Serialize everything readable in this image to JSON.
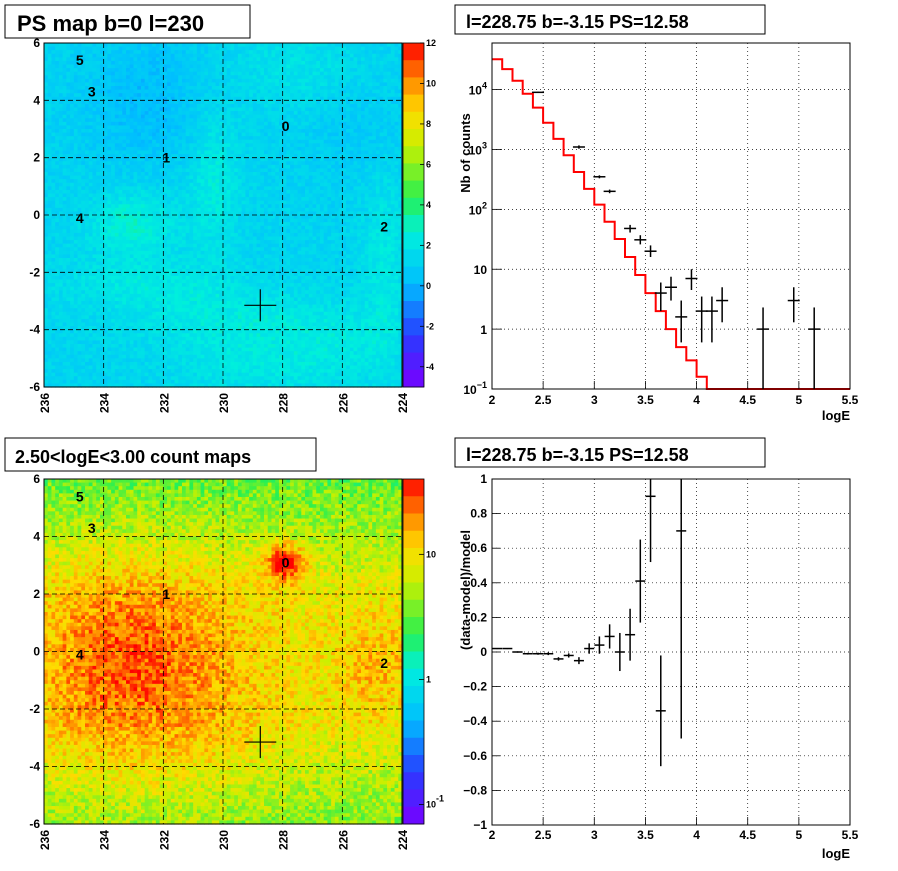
{
  "chart_data": [
    {
      "panel": "ps-map",
      "type": "heatmap",
      "title": "PS map b=0 l=230",
      "xlabel": "",
      "ylabel": "",
      "xlim": [
        236,
        224
      ],
      "ylim": [
        -6,
        6
      ],
      "xticks": [
        "236",
        "234",
        "232",
        "230",
        "228",
        "226",
        "224"
      ],
      "yticks": [
        "6",
        "4",
        "2",
        "0",
        "-2",
        "-4",
        "-6"
      ],
      "grid": true,
      "colorbar": {
        "scale": "linear",
        "range": [
          -5,
          12
        ],
        "ticks": [
          "12",
          "10",
          "8",
          "6",
          "4",
          "2",
          "0",
          "-2",
          "-4"
        ]
      },
      "sources": [
        {
          "label": "5",
          "l": 234.8,
          "b": 5.4
        },
        {
          "label": "3",
          "l": 234.4,
          "b": 4.3
        },
        {
          "label": "0",
          "l": 227.9,
          "b": 3.1
        },
        {
          "label": "1",
          "l": 231.9,
          "b": 2.0
        },
        {
          "label": "4",
          "l": 234.8,
          "b": -0.1
        },
        {
          "label": "2",
          "l": 224.6,
          "b": -0.4
        }
      ],
      "marker": {
        "l": 228.75,
        "b": -3.15
      }
    },
    {
      "panel": "spectrum",
      "type": "line",
      "title": "l=228.75 b=-3.15 PS=12.58",
      "xlabel": "logE",
      "ylabel": "Nb of counts",
      "xlim": [
        2,
        5.5
      ],
      "ylim": [
        0.1,
        60000
      ],
      "yscale": "log",
      "xticks": [
        "2",
        "2.5",
        "3",
        "3.5",
        "4",
        "4.5",
        "5",
        "5.5"
      ],
      "yticks": [
        {
          "label": "10",
          "exp": "4"
        },
        {
          "label": "10",
          "exp": "3"
        },
        {
          "label": "10",
          "exp": "2"
        },
        {
          "label": "10",
          "exp": ""
        },
        {
          "label": "1",
          "exp": ""
        },
        {
          "label": "10",
          "exp": "−1"
        }
      ],
      "grid": true,
      "series": [
        {
          "kind": "model",
          "x": [
            2.0,
            2.1,
            2.2,
            2.3,
            2.4,
            2.5,
            2.6,
            2.7,
            2.8,
            2.9,
            3.0,
            3.1,
            3.2,
            3.3,
            3.4,
            3.5,
            3.6,
            3.7,
            3.8,
            3.9,
            4.0,
            4.1,
            4.2,
            4.3,
            4.4,
            4.5,
            4.6,
            4.7,
            4.8,
            4.9,
            5.0,
            5.1,
            5.2,
            5.3,
            5.4
          ],
          "y": [
            32000,
            22000,
            14000,
            8500,
            5000,
            2800,
            1500,
            800,
            420,
            220,
            120,
            62,
            32,
            16,
            8,
            4,
            2,
            1,
            0.5,
            0.3,
            0.16,
            0.1,
            0.1,
            0.1,
            0.1,
            0.1,
            0.1,
            0.1,
            0.1,
            0.1,
            0.1,
            0.1,
            0.1,
            0.1,
            0.1
          ]
        },
        {
          "kind": "data",
          "points": [
            {
              "x": 2.45,
              "y": 9000,
              "lo": 8800,
              "hi": 9200
            },
            {
              "x": 2.85,
              "y": 1100,
              "lo": 1030,
              "hi": 1170
            },
            {
              "x": 3.05,
              "y": 350,
              "lo": 330,
              "hi": 370
            },
            {
              "x": 3.15,
              "y": 200,
              "lo": 186,
              "hi": 214
            },
            {
              "x": 3.35,
              "y": 48,
              "lo": 41,
              "hi": 55
            },
            {
              "x": 3.45,
              "y": 31,
              "lo": 26,
              "hi": 37
            },
            {
              "x": 3.55,
              "y": 20,
              "lo": 16,
              "hi": 25
            },
            {
              "x": 3.65,
              "y": 4,
              "lo": 2,
              "hi": 6
            },
            {
              "x": 3.75,
              "y": 5,
              "lo": 3,
              "hi": 7.5
            },
            {
              "x": 3.85,
              "y": 1.6,
              "lo": 0.6,
              "hi": 3
            },
            {
              "x": 3.95,
              "y": 7,
              "lo": 4.5,
              "hi": 10
            },
            {
              "x": 4.05,
              "y": 2,
              "lo": 0.6,
              "hi": 3.5
            },
            {
              "x": 4.15,
              "y": 2,
              "lo": 0.6,
              "hi": 3.5
            },
            {
              "x": 4.25,
              "y": 3,
              "lo": 1.3,
              "hi": 5
            },
            {
              "x": 4.65,
              "y": 1,
              "lo": 0.1,
              "hi": 2.3
            },
            {
              "x": 4.95,
              "y": 3,
              "lo": 1.3,
              "hi": 5
            },
            {
              "x": 5.15,
              "y": 1,
              "lo": 0.1,
              "hi": 2.3
            }
          ]
        }
      ]
    },
    {
      "panel": "count-map",
      "type": "heatmap",
      "title": "2.50<logE<3.00 count maps",
      "xlabel": "",
      "ylabel": "",
      "xlim": [
        236,
        224
      ],
      "ylim": [
        -6,
        6
      ],
      "xticks": [
        "236",
        "234",
        "232",
        "230",
        "228",
        "226",
        "224"
      ],
      "yticks": [
        "6",
        "4",
        "2",
        "0",
        "-2",
        "-4",
        "-6"
      ],
      "grid": true,
      "colorbar": {
        "scale": "log",
        "range": [
          0.07,
          40
        ],
        "ticks": [
          {
            "label": "10",
            "exp": ""
          },
          {
            "label": "1",
            "exp": ""
          },
          {
            "label": "10",
            "exp": "-1"
          }
        ]
      },
      "sources": [
        {
          "label": "5",
          "l": 234.8,
          "b": 5.4
        },
        {
          "label": "3",
          "l": 234.4,
          "b": 4.3
        },
        {
          "label": "0",
          "l": 227.9,
          "b": 3.1
        },
        {
          "label": "1",
          "l": 231.9,
          "b": 2.0
        },
        {
          "label": "4",
          "l": 234.8,
          "b": -0.1
        },
        {
          "label": "2",
          "l": 224.6,
          "b": -0.4
        }
      ],
      "marker": {
        "l": 228.75,
        "b": -3.15
      }
    },
    {
      "panel": "residuals",
      "type": "scatter",
      "title": "l=228.75 b=-3.15 PS=12.58",
      "xlabel": "logE",
      "ylabel": "(data-model)/model",
      "xlim": [
        2,
        5.5
      ],
      "ylim": [
        -1,
        1
      ],
      "xticks": [
        "2",
        "2.5",
        "3",
        "3.5",
        "4",
        "4.5",
        "5",
        "5.5"
      ],
      "yticks": [
        "1",
        "0.8",
        "0.6",
        "0.4",
        "0.2",
        "0",
        "−0.2",
        "−0.4",
        "−0.6",
        "−0.8",
        "−1"
      ],
      "grid": true,
      "points": [
        {
          "x": 2.05,
          "y": 0.02,
          "err": 0.003
        },
        {
          "x": 2.15,
          "y": 0.02,
          "err": 0.003
        },
        {
          "x": 2.25,
          "y": 0.0,
          "err": 0.004
        },
        {
          "x": 2.35,
          "y": -0.01,
          "err": 0.005
        },
        {
          "x": 2.45,
          "y": -0.01,
          "err": 0.006
        },
        {
          "x": 2.55,
          "y": -0.01,
          "err": 0.008
        },
        {
          "x": 2.65,
          "y": -0.04,
          "err": 0.01
        },
        {
          "x": 2.75,
          "y": -0.02,
          "err": 0.012
        },
        {
          "x": 2.85,
          "y": -0.05,
          "err": 0.02
        },
        {
          "x": 2.95,
          "y": 0.02,
          "err": 0.03
        },
        {
          "x": 3.05,
          "y": 0.04,
          "err": 0.05
        },
        {
          "x": 3.15,
          "y": 0.09,
          "err": 0.07
        },
        {
          "x": 3.25,
          "y": 0.0,
          "err": 0.11
        },
        {
          "x": 3.35,
          "y": 0.1,
          "err": 0.15
        },
        {
          "x": 3.45,
          "y": 0.41,
          "err": 0.24
        },
        {
          "x": 3.55,
          "y": 0.9,
          "err": 0.38
        },
        {
          "x": 3.65,
          "y": -0.34,
          "err": 0.32
        },
        {
          "x": 3.85,
          "y": 0.7,
          "err": 1.2
        }
      ]
    }
  ]
}
